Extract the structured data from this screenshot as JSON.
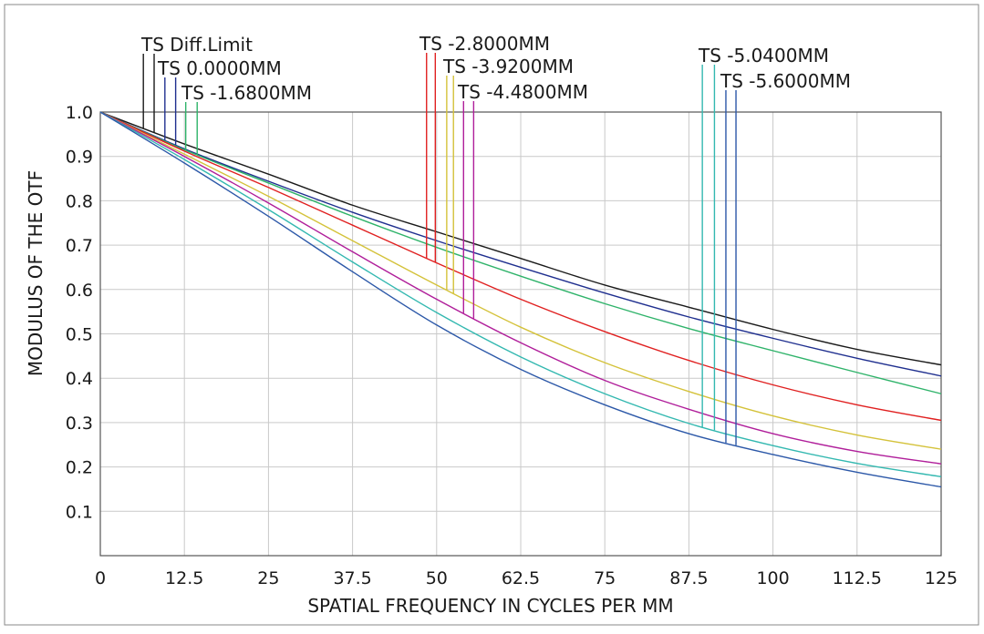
{
  "chart_data": {
    "type": "line",
    "title": "",
    "xlabel": "SPATIAL FREQUENCY IN CYCLES PER MM",
    "ylabel": "MODULUS OF THE OTF",
    "xlim": [
      0,
      125
    ],
    "ylim": [
      0,
      1.0
    ],
    "grid": true,
    "x_ticks": [
      "0",
      "12.5",
      "25",
      "37.5",
      "50",
      "62.5",
      "75",
      "87.5",
      "100",
      "112.5",
      "125"
    ],
    "y_ticks": [
      "1.0",
      "0.9",
      "0.8",
      "0.7",
      "0.6",
      "0.5",
      "0.4",
      "0.3",
      "0.2",
      "0.1"
    ],
    "x": [
      0,
      12.5,
      25,
      37.5,
      50,
      62.5,
      75,
      87.5,
      100,
      112.5,
      125
    ],
    "series": [
      {
        "name": "TS Diff.Limit",
        "color": "#1a1a1a",
        "values": [
          1.0,
          0.928,
          0.86,
          0.79,
          0.73,
          0.67,
          0.61,
          0.56,
          0.51,
          0.465,
          0.43
        ]
      },
      {
        "name": "TS 0.0000MM",
        "color": "#1f2f8f",
        "values": [
          1.0,
          0.917,
          0.844,
          0.774,
          0.71,
          0.65,
          0.592,
          0.538,
          0.49,
          0.445,
          0.405
        ]
      },
      {
        "name": "TS -1.6800MM",
        "color": "#2fb36a",
        "values": [
          1.0,
          0.915,
          0.84,
          0.765,
          0.695,
          0.63,
          0.568,
          0.512,
          0.462,
          0.413,
          0.365
        ]
      },
      {
        "name": "TS -2.8000MM",
        "color": "#e02020",
        "values": [
          1.0,
          0.912,
          0.83,
          0.745,
          0.66,
          0.578,
          0.505,
          0.44,
          0.385,
          0.34,
          0.305
        ]
      },
      {
        "name": "TS -3.9200MM",
        "color": "#d4c23a",
        "values": [
          1.0,
          0.905,
          0.81,
          0.71,
          0.61,
          0.515,
          0.435,
          0.37,
          0.315,
          0.272,
          0.24
        ]
      },
      {
        "name": "TS -4.4800MM",
        "color": "#b01e9a",
        "values": [
          1.0,
          0.9,
          0.795,
          0.685,
          0.578,
          0.48,
          0.395,
          0.33,
          0.275,
          0.235,
          0.207
        ]
      },
      {
        "name": "TS -5.0400MM",
        "color": "#33b8b0",
        "values": [
          1.0,
          0.893,
          0.78,
          0.662,
          0.548,
          0.448,
          0.365,
          0.298,
          0.248,
          0.208,
          0.178
        ]
      },
      {
        "name": "TS -5.6000MM",
        "color": "#2c58a8",
        "values": [
          1.0,
          0.885,
          0.765,
          0.64,
          0.52,
          0.42,
          0.34,
          0.275,
          0.228,
          0.188,
          0.155
        ]
      }
    ],
    "legend_placement": "top, labels above curves with vertical leader lines"
  }
}
